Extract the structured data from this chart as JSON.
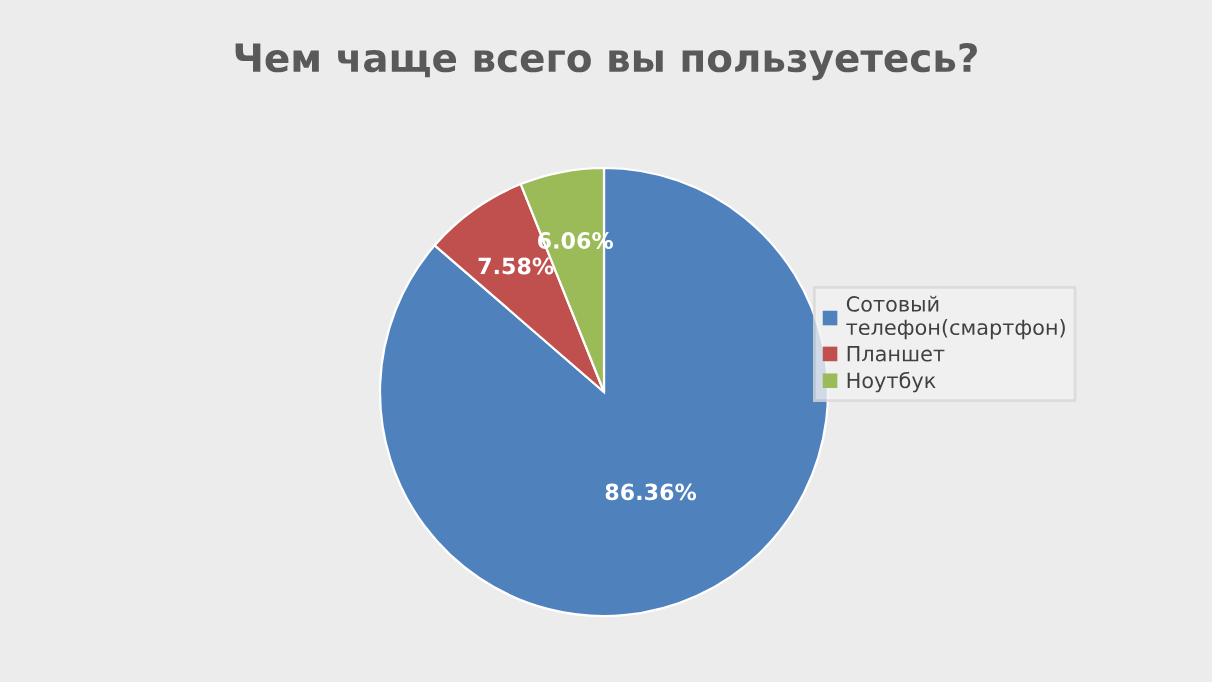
{
  "chart_data": {
    "type": "pie",
    "title": "Чем чаще всего вы пользуетесь?",
    "categories": [
      "Сотовый телефон(смартфон)",
      "Планшет",
      "Ноутбук"
    ],
    "values": [
      86.36,
      7.58,
      6.06
    ],
    "colors": [
      "#4f81bd",
      "#c0504d",
      "#9bbb59"
    ],
    "value_labels": [
      "86.36%",
      "7.58%",
      "6.06%"
    ],
    "legend": "right"
  }
}
